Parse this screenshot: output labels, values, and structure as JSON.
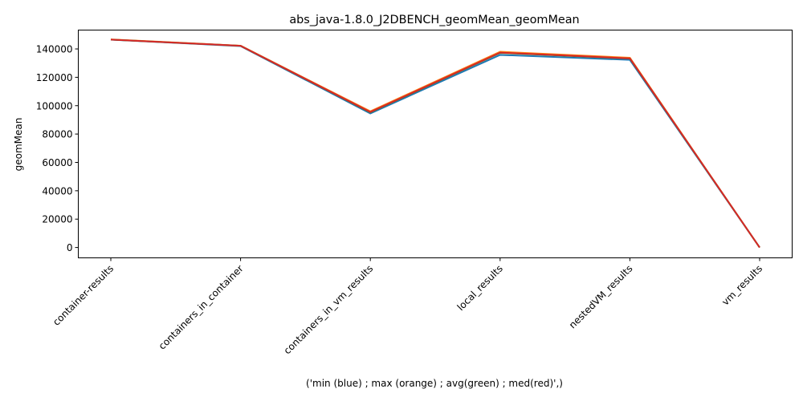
{
  "chart_data": {
    "type": "line",
    "title": "abs_java-1.8.0_J2DBENCH_geomMean_geomMean",
    "xlabel": "('min (blue) ; max (orange) ; avg(green) ; med(red)',)",
    "ylabel": "geomMean",
    "categories": [
      "container-results",
      "containers_in_container",
      "containers_in_vm_results",
      "local_results",
      "nestedVM_results",
      "vm_results"
    ],
    "ylim": [
      -7300,
      153300
    ],
    "yticks": [
      0,
      20000,
      40000,
      60000,
      80000,
      100000,
      120000,
      140000
    ],
    "ytick_labels": [
      "0",
      "20000",
      "40000",
      "60000",
      "80000",
      "100000",
      "120000",
      "140000"
    ],
    "grid": false,
    "series": [
      {
        "color": "#1f77b4",
        "values": [
          146500,
          142000,
          94500,
          135800,
          132300,
          0
        ]
      },
      {
        "color": "#ff7f0e",
        "values": [
          146700,
          142300,
          96000,
          138000,
          133800,
          0
        ]
      },
      {
        "color": "#2ca02c",
        "values": [
          146600,
          142200,
          95300,
          137200,
          133200,
          0
        ]
      },
      {
        "color": "#d62728",
        "values": [
          146600,
          142200,
          95500,
          137400,
          133300,
          0
        ]
      }
    ]
  }
}
